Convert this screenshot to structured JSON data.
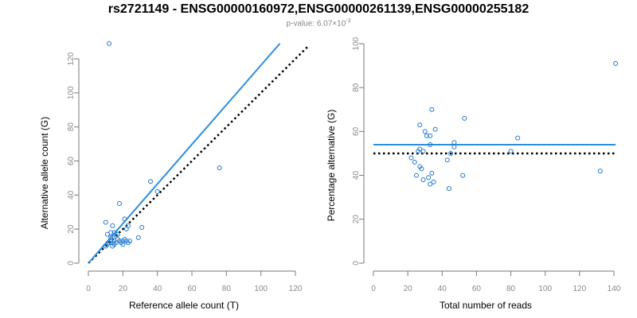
{
  "header": {
    "title": "rs2721149 - ENSG00000160972,ENSG00000261139,ENSG00000255182",
    "pvalue_prefix": "p-value: 6.07×10",
    "pvalue_exp": "-3"
  },
  "colors": {
    "points": "#1f77d0",
    "fit": "#2b8fe0",
    "reference": "#000000"
  },
  "chart_data": [
    {
      "type": "scatter",
      "title": "",
      "xlabel": "Reference allele count (T)",
      "ylabel": "Alternative allele count (G)",
      "xlim": [
        0,
        120
      ],
      "ylim": [
        0,
        130
      ],
      "xticks": [
        0,
        20,
        40,
        60,
        80,
        100,
        120
      ],
      "yticks": [
        0,
        20,
        40,
        60,
        80,
        100,
        120
      ],
      "points": [
        [
          12,
          129
        ],
        [
          76,
          56
        ],
        [
          36,
          48
        ],
        [
          18,
          35
        ],
        [
          40,
          42
        ],
        [
          10,
          24
        ],
        [
          21,
          26
        ],
        [
          23,
          22
        ],
        [
          22,
          20
        ],
        [
          31,
          21
        ],
        [
          11,
          17
        ],
        [
          13,
          18
        ],
        [
          15,
          18
        ],
        [
          16,
          16
        ],
        [
          17,
          17
        ],
        [
          18,
          13
        ],
        [
          19,
          12
        ],
        [
          20,
          13
        ],
        [
          21,
          14
        ],
        [
          22,
          13
        ],
        [
          23,
          12
        ],
        [
          24,
          13
        ],
        [
          13,
          13
        ],
        [
          14,
          12
        ],
        [
          15,
          11
        ],
        [
          16,
          12
        ],
        [
          17,
          14
        ],
        [
          11,
          11
        ],
        [
          12,
          12
        ],
        [
          10,
          10
        ],
        [
          14,
          22
        ],
        [
          20,
          11
        ],
        [
          29,
          15
        ],
        [
          13,
          15
        ],
        [
          15,
          13
        ],
        [
          14,
          10
        ]
      ],
      "fit_line": {
        "x": [
          0,
          111
        ],
        "y": [
          0,
          129
        ]
      },
      "reference_line": {
        "x": [
          0,
          127
        ],
        "y": [
          0,
          127
        ]
      }
    },
    {
      "type": "scatter",
      "title": "",
      "xlabel": "Total number of reads",
      "ylabel": "Percentage alternative (G)",
      "xlim": [
        0,
        140
      ],
      "ylim": [
        0,
        100
      ],
      "xticks": [
        0,
        20,
        40,
        60,
        80,
        100,
        120,
        140
      ],
      "yticks": [
        0,
        20,
        40,
        60,
        80,
        100
      ],
      "points": [
        [
          141,
          91
        ],
        [
          34,
          70
        ],
        [
          27,
          63
        ],
        [
          53,
          66
        ],
        [
          36,
          61
        ],
        [
          30,
          60
        ],
        [
          31,
          58
        ],
        [
          33,
          58
        ],
        [
          84,
          57
        ],
        [
          47,
          55
        ],
        [
          33,
          54
        ],
        [
          47,
          53
        ],
        [
          27,
          52
        ],
        [
          80,
          51
        ],
        [
          26,
          51
        ],
        [
          29,
          51
        ],
        [
          45,
          50
        ],
        [
          22,
          48
        ],
        [
          43,
          47
        ],
        [
          24,
          46
        ],
        [
          27,
          44
        ],
        [
          28,
          43
        ],
        [
          34,
          41
        ],
        [
          52,
          40
        ],
        [
          25,
          40
        ],
        [
          32,
          39
        ],
        [
          29,
          38
        ],
        [
          35,
          37
        ],
        [
          33,
          36
        ],
        [
          44,
          34
        ],
        [
          132,
          42
        ]
      ],
      "fit_line": {
        "x": [
          0,
          141
        ],
        "y": [
          54,
          54
        ]
      },
      "reference_line": {
        "x": [
          0,
          141
        ],
        "y": [
          50,
          50
        ]
      }
    }
  ]
}
